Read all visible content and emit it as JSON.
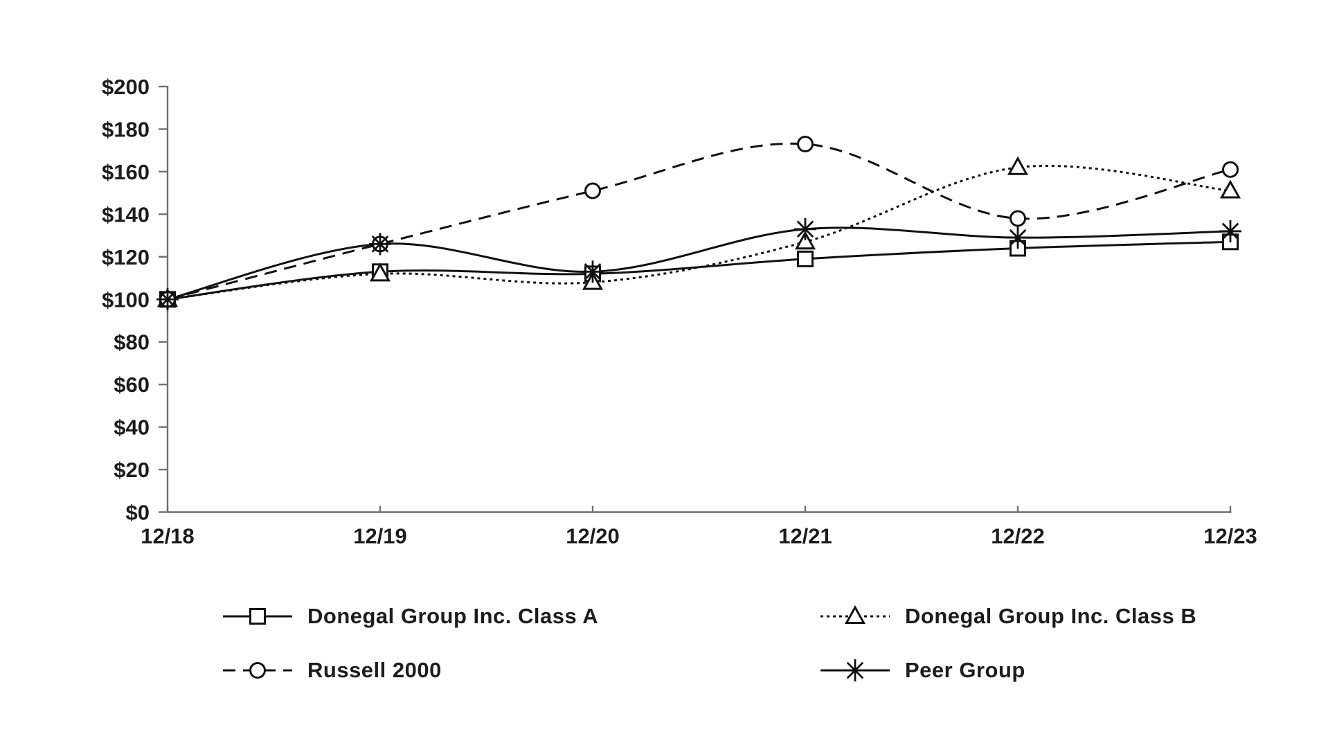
{
  "page": {
    "background": "#ffffff",
    "text_color": "#1c1c1c",
    "axis_color": "#6e6e6e",
    "series_color": "#111111"
  },
  "chart_data": {
    "type": "line",
    "title": "",
    "xlabel": "",
    "ylabel": "",
    "categories": [
      "12/18",
      "12/19",
      "12/20",
      "12/21",
      "12/22",
      "12/23"
    ],
    "ylim": [
      0,
      200
    ],
    "ytick_step": 20,
    "ytick_labels": [
      "$0",
      "$20",
      "$40",
      "$60",
      "$80",
      "$100",
      "$120",
      "$140",
      "$160",
      "$180",
      "$200"
    ],
    "grid": false,
    "smoothed_lines": true,
    "legend_position": "bottom",
    "series": [
      {
        "name": "Donegal Group Inc. Class A",
        "line": "solid",
        "marker": "square",
        "values": [
          100,
          113,
          112,
          119,
          124,
          127
        ]
      },
      {
        "name": "Donegal Group Inc. Class B",
        "line": "dotted",
        "marker": "triangle",
        "values": [
          100,
          112,
          108,
          127,
          162,
          151
        ]
      },
      {
        "name": "Russell 2000",
        "line": "dashed",
        "marker": "circle",
        "values": [
          100,
          126,
          151,
          173,
          138,
          161
        ]
      },
      {
        "name": "Peer Group",
        "line": "solid",
        "marker": "star",
        "values": [
          100,
          126,
          113,
          133,
          129,
          132
        ]
      }
    ]
  }
}
